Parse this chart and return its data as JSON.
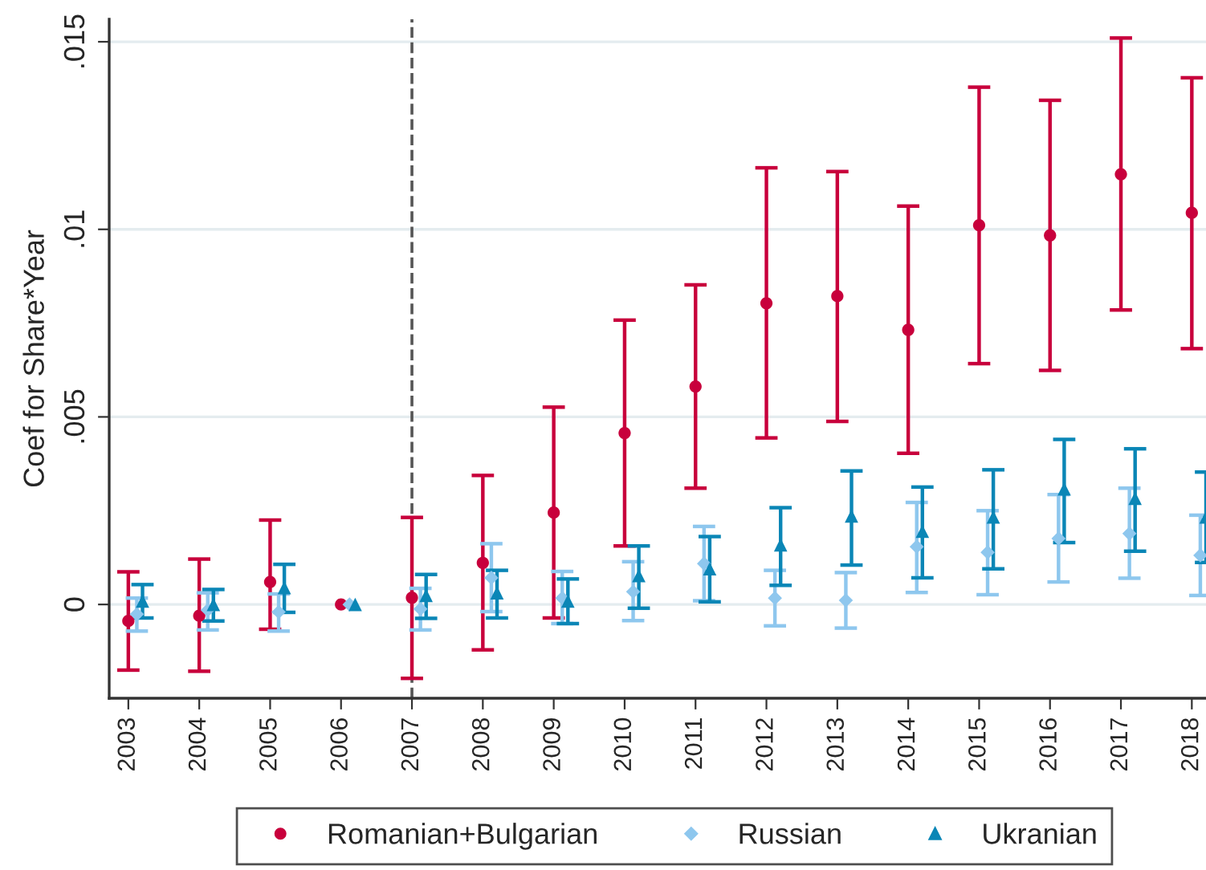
{
  "chart_data": {
    "type": "scatter",
    "ylabel": "Coef for Share*Year",
    "categories": [
      "2003",
      "2004",
      "2005",
      "2006",
      "2007",
      "2008",
      "2009",
      "2010",
      "2011",
      "2012",
      "2013",
      "2014",
      "2015",
      "2016",
      "2017",
      "2018"
    ],
    "series": [
      {
        "name": "Romanian+Bulgarian",
        "color": "#c8003c",
        "marker": "circle",
        "values": [
          -0.00044,
          -0.0003,
          0.0006,
          0,
          0.00018,
          0.00111,
          0.00245,
          0.00457,
          0.00581,
          0.00803,
          0.00822,
          0.00732,
          0.01011,
          0.00984,
          0.01147,
          0.01044
        ],
        "errors": [
          [
            -0.00175,
            0.00087
          ],
          [
            -0.00178,
            0.00121
          ],
          [
            -0.00066,
            0.00225
          ],
          null,
          [
            -0.00197,
            0.00232
          ],
          [
            -0.00121,
            0.00344
          ],
          [
            -0.00036,
            0.00526
          ],
          [
            0.00156,
            0.00758
          ],
          [
            0.0031,
            0.00852
          ],
          [
            0.00444,
            0.01164
          ],
          [
            0.00488,
            0.01154
          ],
          [
            0.00403,
            0.01062
          ],
          [
            0.00642,
            0.01379
          ],
          [
            0.00624,
            0.01344
          ],
          [
            0.00785,
            0.0151
          ],
          [
            0.00682,
            0.01404
          ]
        ]
      },
      {
        "name": "Russian",
        "color": "#8ec7ee",
        "marker": "diamond",
        "values": [
          -0.00026,
          -0.00015,
          -0.0002,
          0,
          -0.00012,
          0.00071,
          0.00017,
          0.00034,
          0.00109,
          0.00017,
          0.00011,
          0.00154,
          0.00139,
          0.00176,
          0.00189,
          0.00131
        ],
        "errors": [
          [
            -0.00071,
            0.00017
          ],
          [
            -0.00068,
            0.00031
          ],
          [
            -0.00071,
            0.00028
          ],
          null,
          [
            -0.00068,
            0.00043
          ],
          [
            -0.00019,
            0.00162
          ],
          [
            -0.00051,
            0.00088
          ],
          [
            -0.00043,
            0.00114
          ],
          [
            0.0001,
            0.00208
          ],
          [
            -0.00057,
            0.00091
          ],
          [
            -0.00063,
            0.00085
          ],
          [
            0.00032,
            0.00272
          ],
          [
            0.00026,
            0.0025
          ],
          [
            0.0006,
            0.00293
          ],
          [
            0.0007,
            0.0031
          ],
          [
            0.00024,
            0.00238
          ]
        ]
      },
      {
        "name": "Ukranian",
        "color": "#0a86b6",
        "marker": "triangle",
        "values": [
          9e-05,
          0,
          0.00045,
          0,
          0.00024,
          0.00031,
          9e-05,
          0.00077,
          0.00095,
          0.00159,
          0.00236,
          0.00195,
          0.00233,
          0.00308,
          0.00283,
          0.00233
        ],
        "errors": [
          [
            -0.00036,
            0.00053
          ],
          [
            -0.00044,
            0.0004
          ],
          [
            -0.00021,
            0.00107
          ],
          null,
          [
            -0.00037,
            0.0008
          ],
          [
            -0.00036,
            0.00091
          ],
          [
            -0.00051,
            0.00068
          ],
          [
            -0.0001,
            0.00156
          ],
          [
            7e-05,
            0.00181
          ],
          [
            0.00051,
            0.00258
          ],
          [
            0.00105,
            0.00356
          ],
          [
            0.00071,
            0.00313
          ],
          [
            0.00095,
            0.00359
          ],
          [
            0.00165,
            0.0044
          ],
          [
            0.00142,
            0.00415
          ],
          [
            0.00112,
            0.00353
          ]
        ]
      }
    ],
    "ylim": [
      -0.0025,
      0.0156
    ],
    "yticks": [
      0,
      {
        "value": 0.005,
        "label": ".005"
      },
      {
        "value": 0.01,
        "label": ".01"
      },
      {
        "value": 0.015,
        "label": ".015"
      }
    ],
    "ref_lines": [
      {
        "axis": "x",
        "value": "2007",
        "color": "#555555",
        "line_style": "dashed"
      }
    ],
    "grid": "y",
    "legend": "bottom"
  }
}
